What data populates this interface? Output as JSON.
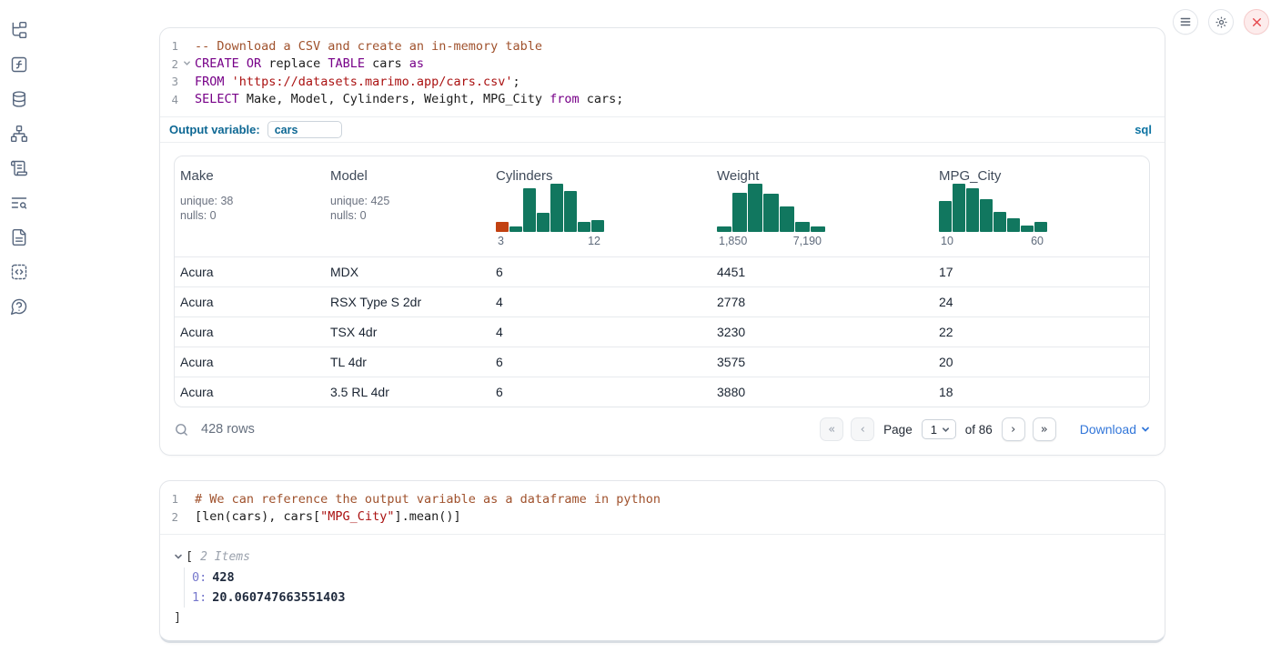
{
  "window_controls": {
    "buttons": [
      {
        "name": "menu"
      },
      {
        "name": "settings"
      },
      {
        "name": "close"
      }
    ]
  },
  "sidebar": {
    "icons": [
      "file-tree",
      "function-square",
      "database",
      "dependency-graph",
      "scroll-text",
      "logs-search",
      "document",
      "snippets",
      "help"
    ]
  },
  "sql_cell": {
    "lines": [
      {
        "num": "1",
        "fold": false,
        "tokens": [
          {
            "c": "comment",
            "t": "-- Download a CSV and create an in-memory table"
          }
        ]
      },
      {
        "num": "2",
        "fold": true,
        "tokens": [
          {
            "c": "keyword",
            "t": "CREATE"
          },
          {
            "c": "plain",
            "t": " "
          },
          {
            "c": "keyword",
            "t": "OR"
          },
          {
            "c": "plain",
            "t": " replace "
          },
          {
            "c": "keyword",
            "t": "TABLE"
          },
          {
            "c": "plain",
            "t": " cars "
          },
          {
            "c": "keyword",
            "t": "as"
          }
        ]
      },
      {
        "num": "3",
        "fold": false,
        "tokens": [
          {
            "c": "keyword",
            "t": "FROM"
          },
          {
            "c": "plain",
            "t": " "
          },
          {
            "c": "string",
            "t": "'https://datasets.marimo.app/cars.csv'"
          },
          {
            "c": "plain",
            "t": ";"
          }
        ]
      },
      {
        "num": "4",
        "fold": false,
        "tokens": [
          {
            "c": "keyword",
            "t": "SELECT"
          },
          {
            "c": "plain",
            "t": " Make, Model, Cylinders, Weight, MPG_City "
          },
          {
            "c": "keyword",
            "t": "from"
          },
          {
            "c": "plain",
            "t": " cars;"
          }
        ]
      }
    ],
    "output_variable_label": "Output variable:",
    "output_variable_value": "cars",
    "language_badge": "sql"
  },
  "table": {
    "bar_color": "#11775f",
    "columns": [
      {
        "name": "Make",
        "type": "stats",
        "unique": "unique: 38",
        "nulls": "nulls: 0"
      },
      {
        "name": "Model",
        "type": "stats",
        "unique": "unique: 425",
        "nulls": "nulls: 0"
      },
      {
        "name": "Cylinders",
        "type": "histogram",
        "min_label": "3",
        "max_label": "12",
        "bars": [
          {
            "h": 0.2,
            "c": "#c24112"
          },
          {
            "h": 0.12
          },
          {
            "h": 0.91
          },
          {
            "h": 0.39
          },
          {
            "h": 1.0
          },
          {
            "h": 0.84
          },
          {
            "h": 0.21
          },
          {
            "h": 0.25
          }
        ]
      },
      {
        "name": "Weight",
        "type": "histogram",
        "min_label": "1,850",
        "max_label": "7,190",
        "bars": [
          {
            "h": 0.12
          },
          {
            "h": 0.81
          },
          {
            "h": 1.0
          },
          {
            "h": 0.79
          },
          {
            "h": 0.52
          },
          {
            "h": 0.2
          },
          {
            "h": 0.12
          }
        ]
      },
      {
        "name": "MPG_City",
        "type": "histogram",
        "min_label": "10",
        "max_label": "60",
        "bars": [
          {
            "h": 0.64
          },
          {
            "h": 1.0
          },
          {
            "h": 0.9
          },
          {
            "h": 0.68
          },
          {
            "h": 0.41
          },
          {
            "h": 0.29
          },
          {
            "h": 0.13
          },
          {
            "h": 0.2
          }
        ]
      }
    ],
    "rows": [
      [
        "Acura",
        "MDX",
        "6",
        "4451",
        "17"
      ],
      [
        "Acura",
        "RSX Type S 2dr",
        "4",
        "2778",
        "24"
      ],
      [
        "Acura",
        "TSX 4dr",
        "4",
        "3230",
        "22"
      ],
      [
        "Acura",
        "TL 4dr",
        "6",
        "3575",
        "20"
      ],
      [
        "Acura",
        "3.5 RL 4dr",
        "6",
        "3880",
        "18"
      ]
    ],
    "footer": {
      "row_count": "428 rows",
      "page_label": "Page",
      "page_value": "1",
      "of_label": "of 86",
      "download_label": "Download"
    }
  },
  "python_cell": {
    "lines": [
      {
        "num": "1",
        "fold": false,
        "tokens": [
          {
            "c": "comment",
            "t": "# We can reference the output variable as a dataframe in python"
          }
        ]
      },
      {
        "num": "2",
        "fold": false,
        "tokens": [
          {
            "c": "plain",
            "t": "[len(cars), cars["
          },
          {
            "c": "string",
            "t": "\"MPG_City\""
          },
          {
            "c": "plain",
            "t": "].mean()]"
          }
        ]
      }
    ]
  },
  "output_tree": {
    "open_bracket": "[",
    "items_label": "2 Items",
    "entries": [
      {
        "key": "0:",
        "value": "428"
      },
      {
        "key": "1:",
        "value": "20.060747663551403"
      }
    ],
    "close_bracket": "]"
  }
}
